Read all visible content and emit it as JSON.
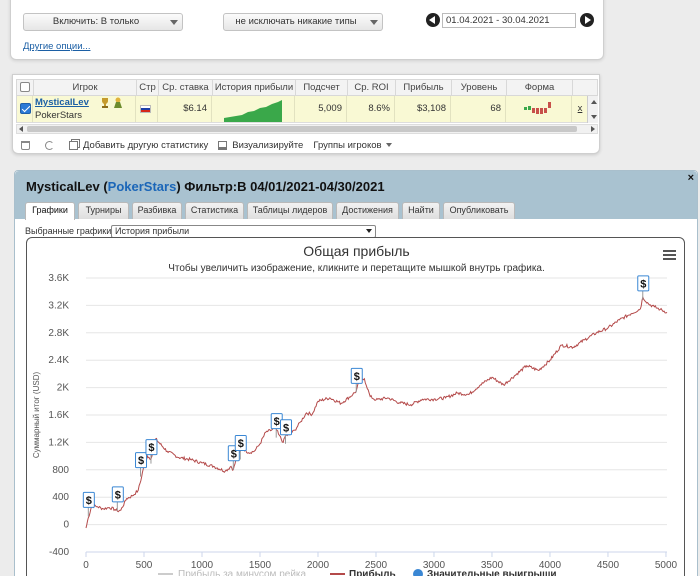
{
  "filters": {
    "include_label": "Включить: В только",
    "exclude_label": "не исключать никакие типы",
    "date_range": "01.04.2021 - 30.04.2021",
    "other_options": "Другие опции..."
  },
  "table": {
    "headers": [
      "Игрок",
      "Стр",
      "Ср. ставка",
      "История прибыли",
      "Подсчет",
      "Ср. ROI",
      "Прибыль",
      "Уровень",
      "Форма"
    ],
    "row": {
      "player": "MysticalLev",
      "room": "PokerStars",
      "avg_stake": "$6.14",
      "count": "5,009",
      "avg_roi": "8.6%",
      "profit": "$3,108",
      "level": "68",
      "trailing": "x"
    }
  },
  "toolbar": {
    "add_stats": "Добавить другую статистику",
    "visualize": "Визуализируйте",
    "groups": "Группы игроков"
  },
  "dialog": {
    "title_player": "MysticalLev",
    "title_room": "PokerStars",
    "title_filter": "Фильтр:В 04/01/2021-04/30/2021",
    "close": "×",
    "tabs": [
      "Графики",
      "Турниры",
      "Разбивка",
      "Статистика",
      "Таблицы лидеров",
      "Достижения",
      "Найти",
      "Опубликовать"
    ],
    "active_tab": 0,
    "select_label": "Выбранные графики:",
    "select_value": "История прибыли"
  },
  "colors": {
    "profit_line": "#b44a4a",
    "big_win_marker": "#3a87d4",
    "rake_line": "#cccccc",
    "sparkline": "#3aa84a"
  },
  "chart_data": {
    "type": "line",
    "title": "Общая прибыль",
    "subtitle": "Чтобы увеличить изображение, кликните и перетащите мышкой внутрь графика.",
    "ylabel": "Суммарный итог (USD)",
    "xlim": [
      0,
      5009
    ],
    "ylim": [
      -400,
      3600
    ],
    "x_ticks": [
      0,
      500,
      1000,
      1500,
      2000,
      2500,
      3000,
      3500,
      4000,
      4500,
      5000
    ],
    "y_ticks": [
      -400,
      0,
      400,
      800,
      1200,
      1600,
      2000,
      2400,
      2800,
      3200,
      3600
    ],
    "y_tick_labels": [
      "-400",
      "0",
      "400",
      "800",
      "1.2K",
      "1.6K",
      "2K",
      "2.4K",
      "2.8K",
      "3.2K",
      "3.6K"
    ],
    "series": [
      {
        "name": "Прибыль",
        "x": [
          0,
          20,
          50,
          100,
          150,
          200,
          250,
          270,
          300,
          350,
          400,
          450,
          480,
          500,
          530,
          560,
          600,
          700,
          800,
          900,
          1000,
          1100,
          1200,
          1250,
          1270,
          1300,
          1350,
          1400,
          1450,
          1500,
          1550,
          1600,
          1630,
          1660,
          1700,
          1720,
          1750,
          1800,
          1850,
          1900,
          1950,
          2000,
          2100,
          2200,
          2300,
          2330,
          2350,
          2400,
          2450,
          2500,
          2600,
          2700,
          2800,
          2900,
          3000,
          3100,
          3200,
          3300,
          3400,
          3500,
          3600,
          3700,
          3800,
          3900,
          4000,
          4100,
          4200,
          4300,
          4400,
          4500,
          4600,
          4700,
          4780,
          4800,
          4850,
          4900,
          4950,
          5009
        ],
        "y": [
          -50,
          100,
          280,
          260,
          230,
          250,
          220,
          200,
          210,
          380,
          420,
          500,
          700,
          870,
          1000,
          960,
          1250,
          1070,
          980,
          950,
          900,
          850,
          780,
          850,
          800,
          980,
          1120,
          1050,
          1070,
          1180,
          1350,
          1380,
          1430,
          1320,
          1200,
          1300,
          1310,
          1380,
          1500,
          1630,
          1610,
          1800,
          1850,
          1770,
          1900,
          1950,
          2070,
          2130,
          1870,
          1820,
          1850,
          1780,
          1750,
          1830,
          1830,
          1850,
          1920,
          1900,
          2040,
          2150,
          2040,
          2180,
          2320,
          2250,
          2400,
          2620,
          2590,
          2700,
          2800,
          2870,
          2990,
          3080,
          3150,
          3320,
          3220,
          3180,
          3140,
          3100
        ]
      },
      {
        "name": "Прибыль за минусом рейка",
        "x": [],
        "y": []
      }
    ],
    "big_wins": {
      "name": "Значительные выигрыши",
      "label": "$",
      "x": [
        20,
        270,
        470,
        560,
        1270,
        1330,
        1640,
        1720,
        2330,
        4800
      ],
      "y": [
        120,
        200,
        700,
        890,
        800,
        950,
        1270,
        1180,
        1930,
        3280
      ]
    },
    "legend": [
      "Прибыль за минусом рейка",
      "Прибыль",
      "Значительные выигрыши"
    ]
  }
}
